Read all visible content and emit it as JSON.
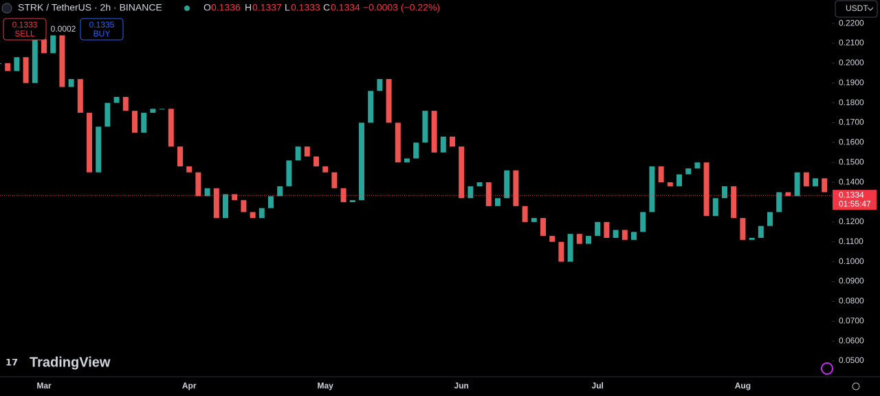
{
  "chart_data": {
    "type": "candlestick",
    "title": "STRK / TetherUS · 2h · BINANCE",
    "ohlc": {
      "o_label": "O",
      "open": 0.1336,
      "h_label": "H",
      "high": 0.1337,
      "l_label": "L",
      "low": 0.1333,
      "c_label": "C",
      "close": 0.1334,
      "change": "−0.0003 (−0.22%)"
    },
    "sell": {
      "price": 0.1333,
      "label": "SELL"
    },
    "spread": 0.0002,
    "buy": {
      "price": 0.1335,
      "label": "BUY"
    },
    "currency": "USDT",
    "last_price": 0.1334,
    "countdown": "01:55:47",
    "brand": "TradingView",
    "up_color": "#26a69a",
    "down_color": "#ef5350",
    "categories": [
      null,
      null,
      null,
      null,
      null,
      "Mar",
      null,
      null,
      null,
      null,
      null,
      null,
      null,
      null,
      null,
      null,
      null,
      null,
      null,
      null,
      null,
      "Apr",
      null,
      null,
      null,
      null,
      null,
      null,
      null,
      null,
      null,
      null,
      null,
      null,
      null,
      null,
      "May",
      null,
      null,
      null,
      null,
      null,
      null,
      null,
      null,
      null,
      null,
      null,
      null,
      null,
      null,
      "Jun",
      null,
      null,
      null,
      null,
      null,
      null,
      null,
      null,
      null,
      null,
      null,
      null,
      null,
      null,
      "Jul",
      null,
      null,
      null,
      null,
      null,
      null,
      null,
      null,
      null,
      null,
      null,
      null,
      null,
      null,
      null,
      "Aug",
      null,
      null,
      null,
      null,
      null,
      null,
      null,
      null,
      null
    ],
    "series": [
      {
        "name": "STRK / TetherUS",
        "values": [
          0.2,
          0.196,
          0.203,
          0.19,
          0.212,
          0.205,
          0.214,
          0.188,
          0.192,
          0.175,
          0.145,
          0.168,
          0.18,
          0.183,
          0.176,
          0.165,
          0.175,
          0.177,
          0.177,
          0.158,
          0.148,
          0.145,
          0.133,
          0.137,
          0.122,
          0.134,
          0.131,
          0.125,
          0.122,
          0.127,
          0.133,
          0.138,
          0.151,
          0.158,
          0.153,
          0.148,
          0.145,
          0.137,
          0.13,
          0.131,
          0.17,
          0.186,
          0.192,
          0.17,
          0.15,
          0.152,
          0.16,
          0.176,
          0.155,
          0.163,
          0.158,
          0.132,
          0.138,
          0.14,
          0.128,
          0.132,
          0.146,
          0.128,
          0.12,
          0.122,
          0.113,
          0.11,
          0.1,
          0.114,
          0.109,
          0.113,
          0.12,
          0.112,
          0.116,
          0.111,
          0.115,
          0.125,
          0.148,
          0.14,
          0.138,
          0.144,
          0.147,
          0.15,
          0.123,
          0.132,
          0.138,
          0.122,
          0.111,
          0.112,
          0.118,
          0.125,
          0.135,
          0.133,
          0.145,
          0.138,
          0.142,
          0.135
        ]
      }
    ],
    "ylim": [
      0.0431,
      0.2318
    ],
    "yticks": [
      {
        "value": 0.05,
        "label": "0.0500"
      },
      {
        "value": 0.06,
        "label": "0.0600"
      },
      {
        "value": 0.07,
        "label": "0.0700"
      },
      {
        "value": 0.08,
        "label": "0.0800"
      },
      {
        "value": 0.09,
        "label": "0.0900"
      },
      {
        "value": 0.1,
        "label": "0.1000"
      },
      {
        "value": 0.11,
        "label": "0.1100"
      },
      {
        "value": 0.12,
        "label": "0.1200"
      },
      {
        "value": 0.13,
        "label": "0.1300"
      },
      {
        "value": 0.14,
        "label": "0.1400"
      },
      {
        "value": 0.15,
        "label": "0.1500"
      },
      {
        "value": 0.16,
        "label": "0.1600"
      },
      {
        "value": 0.17,
        "label": "0.1700"
      },
      {
        "value": 0.18,
        "label": "0.1800"
      },
      {
        "value": 0.19,
        "label": "0.1900"
      },
      {
        "value": 0.2,
        "label": "0.2000"
      },
      {
        "value": 0.21,
        "label": "0.2100"
      },
      {
        "value": 0.22,
        "label": "0.2200"
      }
    ],
    "grid": false
  }
}
